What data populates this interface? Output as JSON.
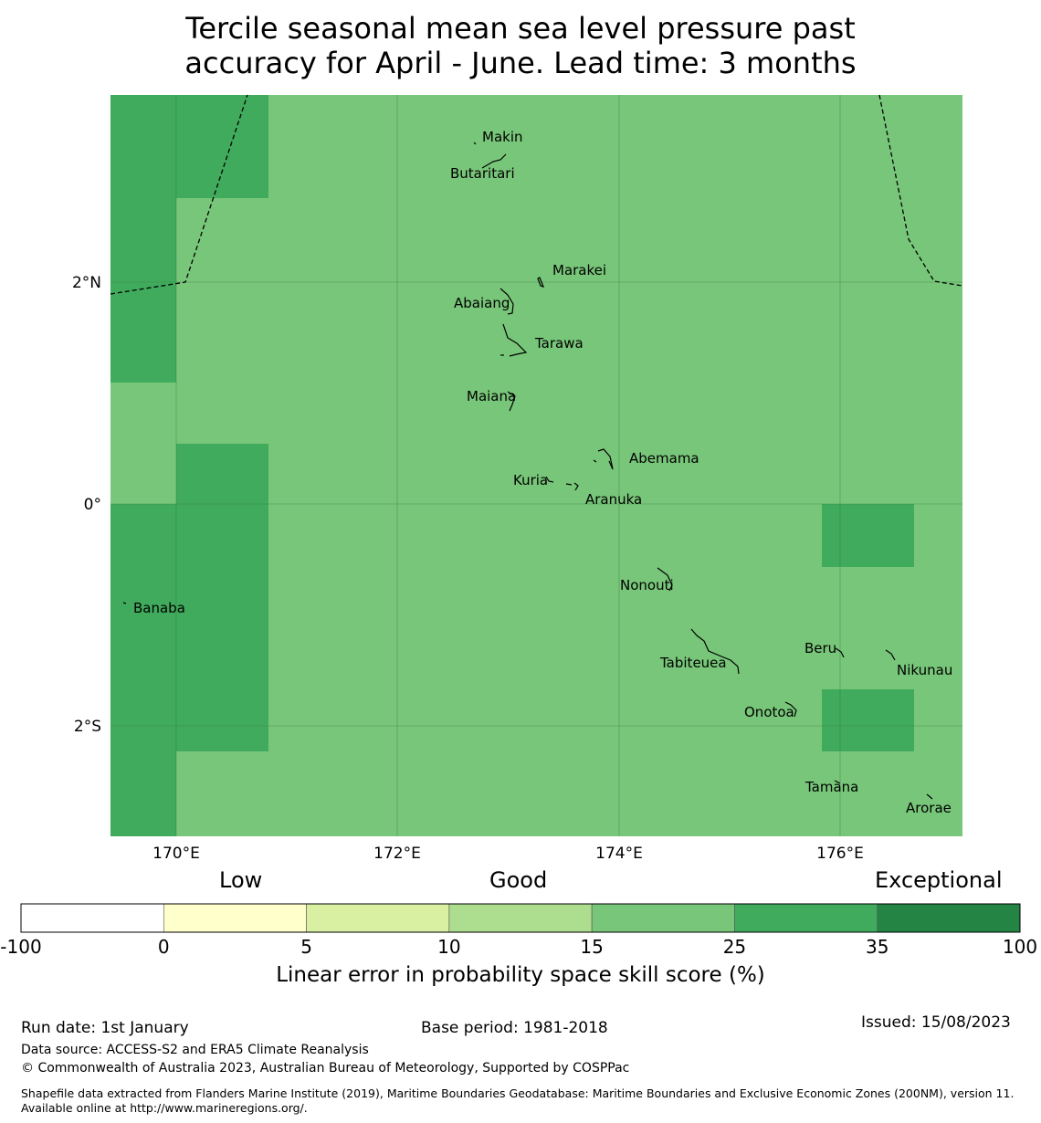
{
  "title_line1": "Tercile seasonal mean sea level pressure past",
  "title_line2": "accuracy for April - June. Lead time: 3 months",
  "axes": {
    "x_ticks": [
      "170°E",
      "172°E",
      "174°E",
      "176°E"
    ],
    "y_ticks": [
      "2°N",
      "0°",
      "2°S"
    ]
  },
  "islands": [
    "Makin",
    "Butaritari",
    "Marakei",
    "Abaiang",
    "Tarawa",
    "Maiana",
    "Abemama",
    "Kuria",
    "Aranuka",
    "Banaba",
    "Nonouti",
    "Beru",
    "Tabiteuea",
    "Nikunau",
    "Onotoa",
    "Tamana",
    "Arorae"
  ],
  "legend": {
    "categories": [
      "Low",
      "Good",
      "Exceptional"
    ],
    "ticks": [
      "-100",
      "0",
      "5",
      "10",
      "15",
      "25",
      "35",
      "100"
    ],
    "colors": [
      "#ffffff",
      "#ffffcc",
      "#d9f0a3",
      "#addd8e",
      "#78c679",
      "#41ab5d",
      "#238443"
    ],
    "title": "Linear error in probability space skill score (%)"
  },
  "footer": {
    "run_date": "Run date: 1st January",
    "base_period": "Base period: 1981-2018",
    "issued": "Issued: 15/08/2023",
    "data_source": "Data source: ACCESS-S2 and ERA5 Climate Reanalysis",
    "copyright": "© Commonwealth of Australia 2023, Australian Bureau of Meteorology, Supported by COSPPac",
    "shapefile": "Shapefile data extracted from Flanders Marine Institute (2019), Maritime Boundaries Geodatabase: Maritime Boundaries and Exclusive Economic Zones (200NM), version 11. Available online at http://www.marineregions.org/."
  }
}
